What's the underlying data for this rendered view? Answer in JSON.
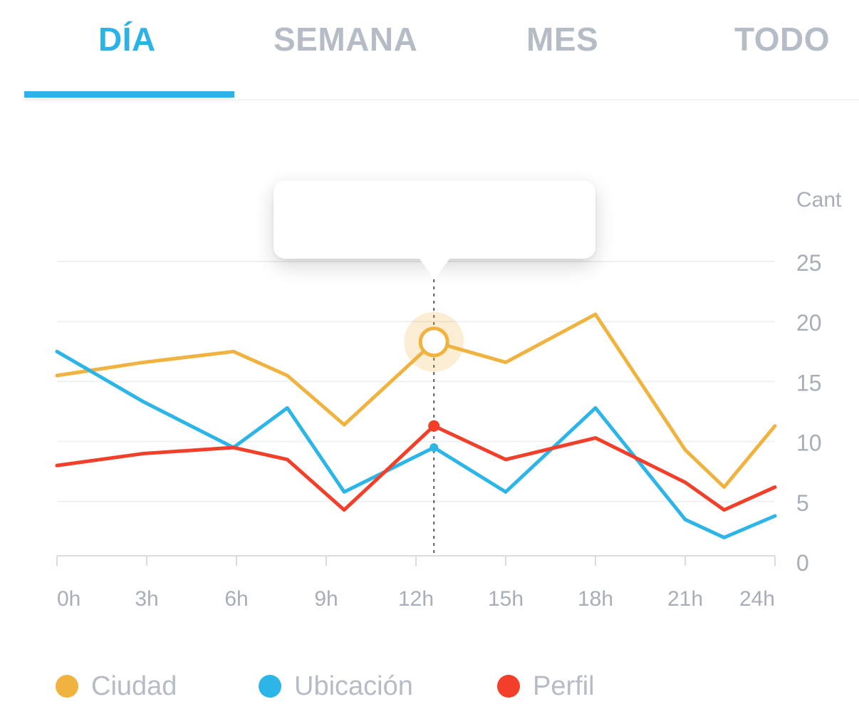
{
  "tabs": [
    {
      "label": "DÍA",
      "active": true
    },
    {
      "label": "SEMANA",
      "active": false
    },
    {
      "label": "MES",
      "active": false
    },
    {
      "label": "TODO",
      "active": false
    }
  ],
  "chart_data": {
    "type": "line",
    "x": [
      0,
      2.9,
      5.9,
      7.7,
      9.6,
      12.6,
      15,
      18,
      21,
      22.3,
      24
    ],
    "xticks": [
      "0h",
      "3h",
      "6h",
      "9h",
      "12h",
      "15h",
      "18h",
      "21h",
      "24h"
    ],
    "y_axis_label": "Cant",
    "yticks": [
      0,
      5,
      10,
      15,
      20,
      25
    ],
    "ylim": [
      0,
      25
    ],
    "grid": true,
    "legend_position": "bottom",
    "series": [
      {
        "name": "Ciudad",
        "color": "#f0b340",
        "values": [
          15.5,
          16.6,
          17.5,
          15.5,
          11.4,
          18.3,
          16.6,
          20.6,
          9.3,
          6.2,
          11.3
        ]
      },
      {
        "name": "Ubicación",
        "color": "#2db5e8",
        "values": [
          17.5,
          13.3,
          9.5,
          12.8,
          5.8,
          9.5,
          5.8,
          12.8,
          3.5,
          2.0,
          3.8
        ]
      },
      {
        "name": "Perfil",
        "color": "#f23f2a",
        "values": [
          8.0,
          9.0,
          9.5,
          8.5,
          4.3,
          11.3,
          8.5,
          10.3,
          6.6,
          4.3,
          6.2
        ]
      }
    ],
    "highlight_x": 12.6
  }
}
